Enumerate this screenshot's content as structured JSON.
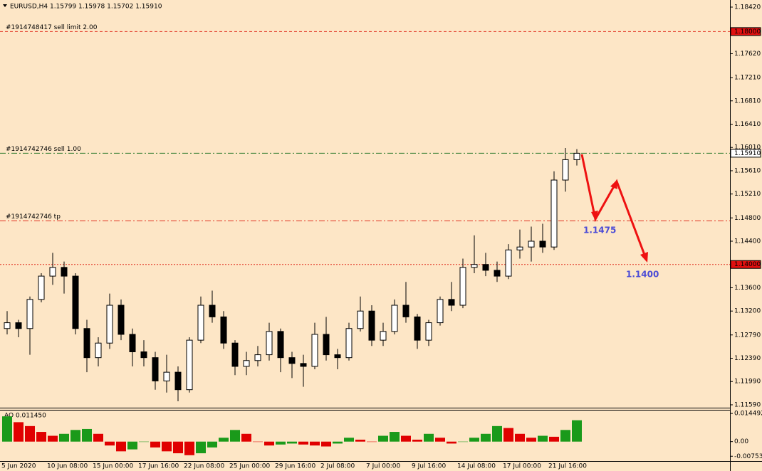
{
  "chart_data": {
    "type": "candlestick",
    "header": "EURUSD,H4  1.15799 1.15978 1.15702 1.15910",
    "categories": [
      "5 Jun 2020",
      null,
      null,
      null,
      "10 Jun 08:00",
      null,
      null,
      null,
      "15 Jun 00:00",
      null,
      null,
      null,
      "17 Jun 16:00",
      null,
      null,
      null,
      "22 Jun 08:00",
      null,
      null,
      null,
      "25 Jun 00:00",
      null,
      null,
      null,
      "29 Jun 16:00",
      null,
      null,
      null,
      "2 Jul 08:00",
      null,
      null,
      null,
      "7 Jul 00:00",
      null,
      null,
      null,
      "9 Jul 16:00",
      null,
      null,
      null,
      "14 Jul 08:00",
      null,
      null,
      null,
      "17 Jul 00:00",
      null,
      null,
      null,
      "21 Jul 16:00",
      null,
      null
    ],
    "candles": [
      {
        "o": 1.129,
        "h": 1.132,
        "l": 1.128,
        "c": 1.13
      },
      {
        "o": 1.13,
        "h": 1.1305,
        "l": 1.1275,
        "c": 1.129
      },
      {
        "o": 1.129,
        "h": 1.1345,
        "l": 1.1245,
        "c": 1.134
      },
      {
        "o": 1.134,
        "h": 1.1385,
        "l": 1.1335,
        "c": 1.138
      },
      {
        "o": 1.138,
        "h": 1.142,
        "l": 1.1365,
        "c": 1.1395
      },
      {
        "o": 1.1395,
        "h": 1.1405,
        "l": 1.135,
        "c": 1.138
      },
      {
        "o": 1.138,
        "h": 1.1385,
        "l": 1.128,
        "c": 1.129
      },
      {
        "o": 1.129,
        "h": 1.1305,
        "l": 1.1215,
        "c": 1.124
      },
      {
        "o": 1.124,
        "h": 1.1275,
        "l": 1.1225,
        "c": 1.1265
      },
      {
        "o": 1.1265,
        "h": 1.135,
        "l": 1.1255,
        "c": 1.133
      },
      {
        "o": 1.133,
        "h": 1.134,
        "l": 1.127,
        "c": 1.128
      },
      {
        "o": 1.128,
        "h": 1.129,
        "l": 1.1225,
        "c": 1.125
      },
      {
        "o": 1.125,
        "h": 1.127,
        "l": 1.1225,
        "c": 1.124
      },
      {
        "o": 1.124,
        "h": 1.125,
        "l": 1.1185,
        "c": 1.12
      },
      {
        "o": 1.12,
        "h": 1.1245,
        "l": 1.118,
        "c": 1.1215
      },
      {
        "o": 1.1215,
        "h": 1.1225,
        "l": 1.1165,
        "c": 1.1185
      },
      {
        "o": 1.1185,
        "h": 1.1275,
        "l": 1.118,
        "c": 1.127
      },
      {
        "o": 1.127,
        "h": 1.1345,
        "l": 1.1265,
        "c": 1.133
      },
      {
        "o": 1.133,
        "h": 1.1355,
        "l": 1.13,
        "c": 1.131
      },
      {
        "o": 1.131,
        "h": 1.132,
        "l": 1.1255,
        "c": 1.1265
      },
      {
        "o": 1.1265,
        "h": 1.127,
        "l": 1.121,
        "c": 1.1225
      },
      {
        "o": 1.1225,
        "h": 1.125,
        "l": 1.121,
        "c": 1.1235
      },
      {
        "o": 1.1235,
        "h": 1.126,
        "l": 1.1225,
        "c": 1.1245
      },
      {
        "o": 1.1245,
        "h": 1.13,
        "l": 1.1235,
        "c": 1.1285
      },
      {
        "o": 1.1285,
        "h": 1.129,
        "l": 1.1215,
        "c": 1.124
      },
      {
        "o": 1.124,
        "h": 1.125,
        "l": 1.1205,
        "c": 1.123
      },
      {
        "o": 1.123,
        "h": 1.1245,
        "l": 1.119,
        "c": 1.1225
      },
      {
        "o": 1.1225,
        "h": 1.13,
        "l": 1.122,
        "c": 1.128
      },
      {
        "o": 1.128,
        "h": 1.131,
        "l": 1.1235,
        "c": 1.1245
      },
      {
        "o": 1.1245,
        "h": 1.1255,
        "l": 1.122,
        "c": 1.124
      },
      {
        "o": 1.124,
        "h": 1.13,
        "l": 1.1235,
        "c": 1.129
      },
      {
        "o": 1.129,
        "h": 1.1345,
        "l": 1.1285,
        "c": 1.132
      },
      {
        "o": 1.132,
        "h": 1.133,
        "l": 1.126,
        "c": 1.127
      },
      {
        "o": 1.127,
        "h": 1.13,
        "l": 1.126,
        "c": 1.1285
      },
      {
        "o": 1.1285,
        "h": 1.134,
        "l": 1.128,
        "c": 1.133
      },
      {
        "o": 1.133,
        "h": 1.137,
        "l": 1.13,
        "c": 1.131
      },
      {
        "o": 1.131,
        "h": 1.1315,
        "l": 1.1255,
        "c": 1.127
      },
      {
        "o": 1.127,
        "h": 1.1305,
        "l": 1.126,
        "c": 1.13
      },
      {
        "o": 1.13,
        "h": 1.1345,
        "l": 1.1295,
        "c": 1.134
      },
      {
        "o": 1.134,
        "h": 1.137,
        "l": 1.132,
        "c": 1.133
      },
      {
        "o": 1.133,
        "h": 1.141,
        "l": 1.1325,
        "c": 1.1395
      },
      {
        "o": 1.1395,
        "h": 1.145,
        "l": 1.1385,
        "c": 1.14
      },
      {
        "o": 1.14,
        "h": 1.142,
        "l": 1.138,
        "c": 1.139
      },
      {
        "o": 1.139,
        "h": 1.1405,
        "l": 1.137,
        "c": 1.138
      },
      {
        "o": 1.138,
        "h": 1.1435,
        "l": 1.1375,
        "c": 1.1425
      },
      {
        "o": 1.1425,
        "h": 1.146,
        "l": 1.141,
        "c": 1.143
      },
      {
        "o": 1.143,
        "h": 1.1465,
        "l": 1.1405,
        "c": 1.144
      },
      {
        "o": 1.144,
        "h": 1.147,
        "l": 1.142,
        "c": 1.143
      },
      {
        "o": 1.143,
        "h": 1.156,
        "l": 1.1425,
        "c": 1.1545
      },
      {
        "o": 1.1545,
        "h": 1.16,
        "l": 1.1525,
        "c": 1.158
      },
      {
        "o": 1.158,
        "h": 1.1598,
        "l": 1.157,
        "c": 1.1591
      }
    ],
    "up_color": "#ffffff",
    "down_color": "#000000",
    "background": "#fde6c6",
    "ylim": [
      1.11553,
      1.18542
    ],
    "yticks": [
      {
        "value": 1.1842,
        "label": "1.18420"
      },
      {
        "value": 1.1762,
        "label": "1.17620"
      },
      {
        "value": 1.1721,
        "label": "1.17210"
      },
      {
        "value": 1.1681,
        "label": "1.16810"
      },
      {
        "value": 1.1641,
        "label": "1.16410"
      },
      {
        "value": 1.1601,
        "label": "1.16010"
      },
      {
        "value": 1.1561,
        "label": "1.15610"
      },
      {
        "value": 1.1521,
        "label": "1.15210"
      },
      {
        "value": 1.148,
        "label": "1.14800"
      },
      {
        "value": 1.144,
        "label": "1.14400"
      },
      {
        "value": 1.136,
        "label": "1.13600"
      },
      {
        "value": 1.132,
        "label": "1.13200"
      },
      {
        "value": 1.1279,
        "label": "1.12790"
      },
      {
        "value": 1.1239,
        "label": "1.12390"
      },
      {
        "value": 1.1199,
        "label": "1.11990"
      },
      {
        "value": 1.1159,
        "label": "1.11590"
      }
    ],
    "levels": [
      {
        "text": "#1914748417 sell limit 2.00",
        "price": 1.18,
        "price_label": "1.18000",
        "color": "#e03020",
        "dash": "4 3",
        "box": "#e01010"
      },
      {
        "text": "#1914742746 sell 1.00",
        "price": 1.1591,
        "price_label": "1.15910",
        "color": "#2a7a2a",
        "dash": "8 3 2 3",
        "box": "#ffffff"
      },
      {
        "text": "#1914742746 tp",
        "price": 1.1475,
        "color": "#e03020",
        "dash": "8 3 2 3"
      },
      {
        "price": 1.14,
        "price_label": "1.14000",
        "color": "#e03020",
        "dash": "2 2",
        "box": "#e01010"
      }
    ],
    "annotations": [
      "1.1475",
      "1.1400"
    ],
    "ao": {
      "label": "AO 0.011450",
      "values": [
        0.013,
        0.01,
        0.008,
        0.005,
        0.003,
        0.004,
        0.006,
        0.0065,
        0.004,
        -0.002,
        -0.005,
        -0.004,
        0.0,
        -0.003,
        -0.005,
        -0.006,
        -0.007,
        -0.006,
        -0.003,
        0.002,
        0.006,
        0.004,
        0.0,
        -0.002,
        -0.0015,
        -0.001,
        -0.0015,
        -0.002,
        -0.0025,
        -0.001,
        0.002,
        0.001,
        0.0,
        0.003,
        0.005,
        0.003,
        0.001,
        0.004,
        0.002,
        -0.001,
        0.0,
        0.002,
        0.004,
        0.008,
        0.007,
        0.004,
        0.002,
        0.003,
        0.0025,
        0.006,
        0.011
      ],
      "up_color": "#1a9a1a",
      "down_color": "#e00000",
      "ylim": [
        -0.01,
        0.016
      ],
      "yticks": [
        0.014492,
        {
          "value": 0,
          "label": "0.00"
        },
        -0.00753
      ]
    }
  }
}
